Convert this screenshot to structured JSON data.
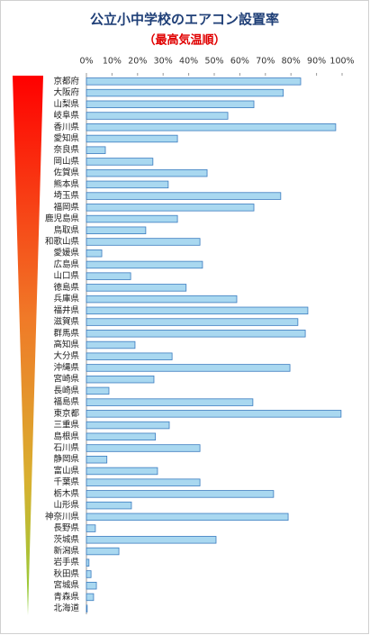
{
  "chart_data": {
    "type": "hbar",
    "title": "公立小中学校のエアコン設置率",
    "subtitle": "（最高気温順）",
    "categories": [
      "京都府",
      "大阪府",
      "山梨県",
      "岐阜県",
      "香川県",
      "愛知県",
      "奈良県",
      "岡山県",
      "佐賀県",
      "熊本県",
      "埼玉県",
      "福岡県",
      "鹿児島県",
      "鳥取県",
      "和歌山県",
      "愛媛県",
      "広島県",
      "山口県",
      "徳島県",
      "兵庫県",
      "福井県",
      "滋賀県",
      "群馬県",
      "高知県",
      "大分県",
      "沖縄県",
      "宮崎県",
      "長崎県",
      "福島県",
      "東京都",
      "三重県",
      "島根県",
      "石川県",
      "静岡県",
      "富山県",
      "千葉県",
      "栃木県",
      "山形県",
      "神奈川県",
      "長野県",
      "茨城県",
      "新潟県",
      "岩手県",
      "秋田県",
      "宮城県",
      "青森県",
      "北海道"
    ],
    "values": [
      83.8,
      77,
      65.5,
      55.3,
      97.5,
      35.6,
      7.4,
      26,
      47.2,
      32,
      76,
      65.5,
      35.6,
      23.2,
      44.4,
      6,
      45.4,
      17.3,
      39,
      58.8,
      86.6,
      82.7,
      85.6,
      19,
      33.5,
      79.6,
      26.4,
      8.8,
      65.1,
      99.6,
      32.4,
      27,
      44.4,
      8,
      27.8,
      44.4,
      73.2,
      17.6,
      78.9,
      3.5,
      50.7,
      12.7,
      1,
      1.8,
      3.9,
      2.8,
      0.3
    ],
    "color": "#a9d8f0",
    "xlim": [
      0,
      100
    ],
    "xticks": [
      {
        "value": 0,
        "label": "0%"
      },
      {
        "value": 10,
        "label": "10%"
      },
      {
        "value": 20,
        "label": "20%"
      },
      {
        "value": 30,
        "label": "30%"
      },
      {
        "value": 40,
        "label": "40%"
      },
      {
        "value": 50,
        "label": "50%"
      },
      {
        "value": 60,
        "label": "60%"
      },
      {
        "value": 70,
        "label": "70%"
      },
      {
        "value": 80,
        "label": "80%"
      },
      {
        "value": 90,
        "label": "90%"
      },
      {
        "value": 100,
        "label": "100%"
      }
    ]
  }
}
